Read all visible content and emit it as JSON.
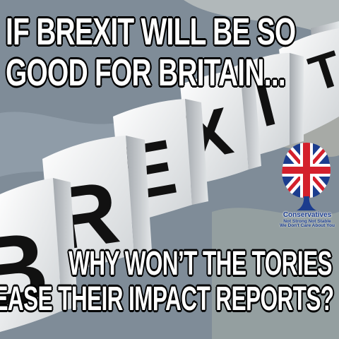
{
  "headline_top": {
    "line1": "IF BREXIT WILL BE SO",
    "line2": "GOOD FOR BRITAIN..."
  },
  "headline_bottom": {
    "line1": "WHY WON’T THE TORIES",
    "line2": "RELEASE THEIR IMPACT REPORTS?"
  },
  "cubes": {
    "letters": [
      "B",
      "R",
      "E",
      "X",
      "I",
      "T"
    ]
  },
  "logo": {
    "name": "Conservatives",
    "tagline1": "Not Strong Not Stable",
    "tagline2": "We Don't Care About You"
  },
  "colors": {
    "text": "#ffffff",
    "outline": "#000000",
    "flag_blue": "#1b3c8e",
    "flag_red": "#d4202c"
  }
}
